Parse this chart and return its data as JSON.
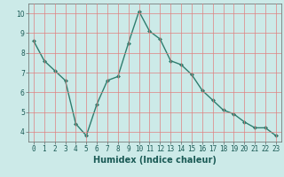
{
  "x": [
    0,
    1,
    2,
    3,
    4,
    5,
    6,
    7,
    8,
    9,
    10,
    11,
    12,
    13,
    14,
    15,
    16,
    17,
    18,
    19,
    20,
    21,
    22,
    23
  ],
  "y": [
    8.6,
    7.6,
    7.1,
    6.6,
    4.4,
    3.8,
    5.4,
    6.6,
    6.8,
    8.5,
    10.1,
    9.1,
    8.7,
    7.6,
    7.4,
    6.9,
    6.1,
    5.6,
    5.1,
    4.9,
    4.5,
    4.2,
    4.2,
    3.8
  ],
  "line_color": "#2e7d6e",
  "marker": "D",
  "marker_size": 2.0,
  "bg_color": "#cceae8",
  "grid_color": "#e08080",
  "xlabel": "Humidex (Indice chaleur)",
  "ylim": [
    3.5,
    10.5
  ],
  "xlim": [
    -0.5,
    23.5
  ],
  "yticks": [
    4,
    5,
    6,
    7,
    8,
    9,
    10
  ],
  "xticks": [
    0,
    1,
    2,
    3,
    4,
    5,
    6,
    7,
    8,
    9,
    10,
    11,
    12,
    13,
    14,
    15,
    16,
    17,
    18,
    19,
    20,
    21,
    22,
    23
  ],
  "tick_fontsize": 5.5,
  "xlabel_fontsize": 7.0,
  "label_color": "#1a5a55",
  "spine_color": "#666666",
  "linewidth": 1.0
}
